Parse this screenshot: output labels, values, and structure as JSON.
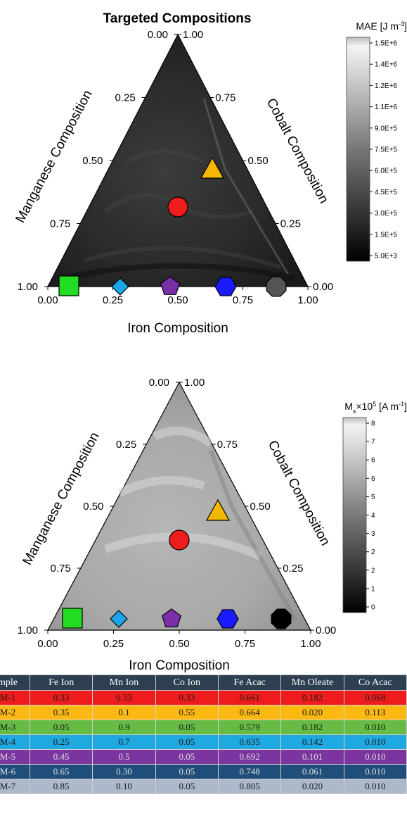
{
  "chart_data": [
    {
      "type": "ternary-heatmap",
      "title": "Targeted Compositions",
      "xlabel": "Iron Composition",
      "left_axis_label": "Manganese Composition",
      "right_axis_label": "Cobalt Composition",
      "bottom_ticks": [
        "0.00",
        "0.25",
        "0.50",
        "0.75",
        "1.00"
      ],
      "left_ticks": [
        "1.00",
        "0.75",
        "0.50",
        "0.25",
        "0.00"
      ],
      "right_ticks": [
        "0.00",
        "0.25",
        "0.50",
        "0.75",
        "1.00"
      ],
      "colorbar": {
        "label_html": "MAE [J m<tspan baseline-shift='super' font-size='9'>-3</tspan>]",
        "label": "MAE [J m-3]",
        "ticks": [
          "1.5E+6",
          "1.4E+6",
          "1.2E+6",
          "1.1E+6",
          "9.0E+5",
          "7.5E+5",
          "6.0E+5",
          "4.5E+5",
          "3.0E+5",
          "1.5E+5",
          "5.0E+3"
        ],
        "min": 5000,
        "max": 1500000
      },
      "markers": [
        {
          "shape": "circle",
          "color": "#ee1c1c",
          "fe": 0.33,
          "mn": 0.33,
          "co": 0.33
        },
        {
          "shape": "triangle",
          "color": "#f5b800",
          "fe": 0.35,
          "mn": 0.1,
          "co": 0.55
        },
        {
          "shape": "square",
          "color": "#22dd22",
          "fe": 0.05,
          "mn": 0.9,
          "co": 0.05
        },
        {
          "shape": "diamond",
          "color": "#1aa6e8",
          "fe": 0.25,
          "mn": 0.7,
          "co": 0.05
        },
        {
          "shape": "pentagon",
          "color": "#7a2fa8",
          "fe": 0.45,
          "mn": 0.5,
          "co": 0.05
        },
        {
          "shape": "hexagon",
          "color": "#1a1aff",
          "fe": 0.65,
          "mn": 0.3,
          "co": 0.05
        },
        {
          "shape": "octagon",
          "color": "#555555",
          "fe": 0.85,
          "mn": 0.1,
          "co": 0.05
        }
      ]
    },
    {
      "type": "ternary-heatmap",
      "title": "",
      "xlabel": "Iron Composition",
      "left_axis_label": "Manganese Composition",
      "right_axis_label": "Cobalt Composition",
      "bottom_ticks": [
        "0.00",
        "0.25",
        "0.50",
        "0.75",
        "1.00"
      ],
      "left_ticks": [
        "1.00",
        "0.75",
        "0.50",
        "0.25",
        "0.00"
      ],
      "right_ticks": [
        "0.00",
        "0.25",
        "0.50",
        "0.75",
        "1.00"
      ],
      "colorbar": {
        "label_html": "M<tspan baseline-shift='sub' font-size='9'>s</tspan>×10<tspan baseline-shift='super' font-size='9'>5</tspan> [A m<tspan baseline-shift='super' font-size='9'>-1</tspan>]",
        "label": "Ms×105 [A m-1]",
        "ticks": [
          "8",
          "7",
          "6",
          "6",
          "5",
          "4",
          "3",
          "2",
          "2",
          "1",
          "0"
        ],
        "min": 0,
        "max": 8
      },
      "markers": [
        {
          "shape": "circle",
          "color": "#ee1c1c",
          "fe": 0.33,
          "mn": 0.33,
          "co": 0.33
        },
        {
          "shape": "triangle",
          "color": "#f5b800",
          "fe": 0.35,
          "mn": 0.1,
          "co": 0.55
        },
        {
          "shape": "square",
          "color": "#22dd22",
          "fe": 0.05,
          "mn": 0.9,
          "co": 0.05
        },
        {
          "shape": "diamond",
          "color": "#1aa6e8",
          "fe": 0.25,
          "mn": 0.7,
          "co": 0.05
        },
        {
          "shape": "pentagon",
          "color": "#7a2fa8",
          "fe": 0.45,
          "mn": 0.5,
          "co": 0.05
        },
        {
          "shape": "hexagon",
          "color": "#1a1aff",
          "fe": 0.65,
          "mn": 0.3,
          "co": 0.05
        },
        {
          "shape": "octagon",
          "color": "#000000",
          "fe": 0.85,
          "mn": 0.1,
          "co": 0.05
        }
      ]
    },
    {
      "type": "table",
      "columns": [
        "mple",
        "Fe Ion",
        "Mn Ion",
        "Co Ion",
        "Fe Acac",
        "Mn Oleate",
        "Co Acac"
      ],
      "rows": [
        {
          "cells": [
            "M-1",
            "0.33",
            "0.33",
            "0.33",
            "0.661",
            "0.182",
            "0.068"
          ],
          "bg": "#ee1c1c",
          "fg": "#1a1a1a"
        },
        {
          "cells": [
            "M-2",
            "0.35",
            "0.1",
            "0.55",
            "0.664",
            "0.020",
            "0.113"
          ],
          "bg": "#fdb913",
          "fg": "#1a1a1a"
        },
        {
          "cells": [
            "M-3",
            "0.05",
            "0.9",
            "0.05",
            "0.579",
            "0.182",
            "0.010"
          ],
          "bg": "#66bb44",
          "fg": "#1a1a1a"
        },
        {
          "cells": [
            "M-4",
            "0.25",
            "0.7",
            "0.05",
            "0.635",
            "0.142",
            "0.010"
          ],
          "bg": "#20a8e0",
          "fg": "#1a1a1a"
        },
        {
          "cells": [
            "M-5",
            "0.45",
            "0.5",
            "0.05",
            "0.692",
            "0.101",
            "0.010"
          ],
          "bg": "#7a35a0",
          "fg": "#dddddd"
        },
        {
          "cells": [
            "M-6",
            "0.65",
            "0.30",
            "0.05",
            "0.748",
            "0.061",
            "0.010"
          ],
          "bg": "#1f4e7a",
          "fg": "#dddddd"
        },
        {
          "cells": [
            "M-7",
            "0.85",
            "0.10",
            "0.05",
            "0.805",
            "0.020",
            "0.010"
          ],
          "bg": "#adb9ca",
          "fg": "#1a1a1a"
        }
      ]
    }
  ]
}
